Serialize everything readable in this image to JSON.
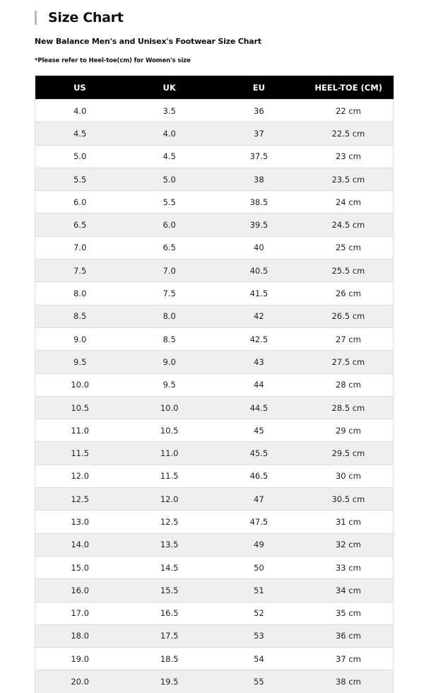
{
  "title": "Size Chart",
  "subtitle": "New Balance Men's and Unisex's Footwear Size Chart",
  "note": "*Please refer to Heel-toe(cm) for Women's size",
  "table": {
    "headers": [
      "US",
      "UK",
      "EU",
      "HEEL-TOE (CM)"
    ],
    "rows": [
      [
        "4.0",
        "3.5",
        "36",
        "22 cm"
      ],
      [
        "4.5",
        "4.0",
        "37",
        "22.5 cm"
      ],
      [
        "5.0",
        "4.5",
        "37.5",
        "23 cm"
      ],
      [
        "5.5",
        "5.0",
        "38",
        "23.5 cm"
      ],
      [
        "6.0",
        "5.5",
        "38.5",
        "24 cm"
      ],
      [
        "6.5",
        "6.0",
        "39.5",
        "24.5 cm"
      ],
      [
        "7.0",
        "6.5",
        "40",
        "25 cm"
      ],
      [
        "7.5",
        "7.0",
        "40.5",
        "25.5 cm"
      ],
      [
        "8.0",
        "7.5",
        "41.5",
        "26 cm"
      ],
      [
        "8.5",
        "8.0",
        "42",
        "26.5 cm"
      ],
      [
        "9.0",
        "8.5",
        "42.5",
        "27 cm"
      ],
      [
        "9.5",
        "9.0",
        "43",
        "27.5 cm"
      ],
      [
        "10.0",
        "9.5",
        "44",
        "28 cm"
      ],
      [
        "10.5",
        "10.0",
        "44.5",
        "28.5 cm"
      ],
      [
        "11.0",
        "10.5",
        "45",
        "29 cm"
      ],
      [
        "11.5",
        "11.0",
        "45.5",
        "29.5 cm"
      ],
      [
        "12.0",
        "11.5",
        "46.5",
        "30 cm"
      ],
      [
        "12.5",
        "12.0",
        "47",
        "30.5 cm"
      ],
      [
        "13.0",
        "12.5",
        "47.5",
        "31 cm"
      ],
      [
        "14.0",
        "13.5",
        "49",
        "32 cm"
      ],
      [
        "15.0",
        "14.5",
        "50",
        "33 cm"
      ],
      [
        "16.0",
        "15.5",
        "51",
        "34 cm"
      ],
      [
        "17.0",
        "16.5",
        "52",
        "35 cm"
      ],
      [
        "18.0",
        "17.5",
        "53",
        "36 cm"
      ],
      [
        "19.0",
        "18.5",
        "54",
        "37 cm"
      ],
      [
        "20.0",
        "19.5",
        "55",
        "38 cm"
      ]
    ]
  }
}
